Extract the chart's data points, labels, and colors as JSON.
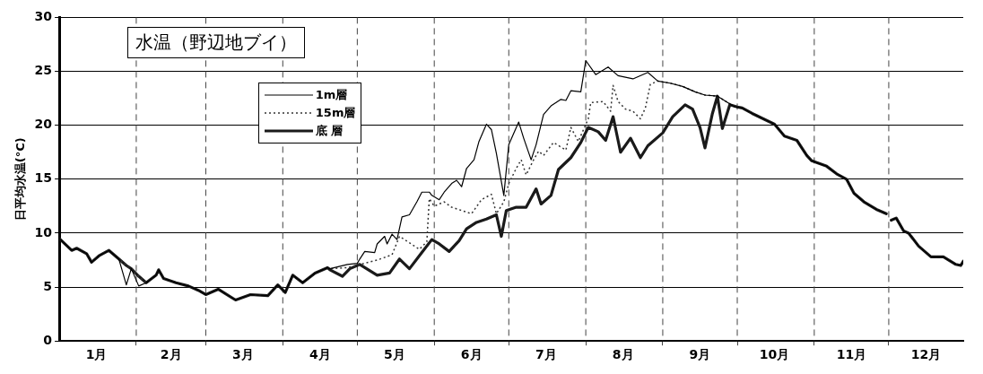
{
  "chart_data": {
    "type": "line",
    "title": "水温（野辺地ブイ）",
    "ylabel": "日平均水温(°C)",
    "xlim": [
      "--01-01",
      "--12-31"
    ],
    "xticks": [
      {
        "value": "--01-16",
        "label": "1月"
      },
      {
        "value": "--02-01",
        "label": null
      },
      {
        "value": "--02-15",
        "label": "2月"
      },
      {
        "value": "--03-01",
        "label": null
      },
      {
        "value": "--03-16",
        "label": "3月"
      },
      {
        "value": "--04-01",
        "label": null
      },
      {
        "value": "--04-16",
        "label": "4月"
      },
      {
        "value": "--05-01",
        "label": null
      },
      {
        "value": "--05-16",
        "label": "5月"
      },
      {
        "value": "--06-01",
        "label": null
      },
      {
        "value": "--06-16",
        "label": "6月"
      },
      {
        "value": "--07-01",
        "label": null
      },
      {
        "value": "--07-16",
        "label": "7月"
      },
      {
        "value": "--08-01",
        "label": null
      },
      {
        "value": "--08-16",
        "label": "8月"
      },
      {
        "value": "--09-01",
        "label": null
      },
      {
        "value": "--09-16",
        "label": "9月"
      },
      {
        "value": "--10-01",
        "label": null
      },
      {
        "value": "--10-16",
        "label": "10月"
      },
      {
        "value": "--11-01",
        "label": null
      },
      {
        "value": "--11-16",
        "label": "11月"
      },
      {
        "value": "--12-01",
        "label": null
      },
      {
        "value": "--12-16",
        "label": "12月"
      }
    ],
    "ylim": [
      0,
      30
    ],
    "yticks": [
      0,
      5,
      10,
      15,
      20,
      25,
      30
    ],
    "grid": true,
    "legend": "top left",
    "marker": "none",
    "series": [
      {
        "name": "1m層",
        "color": "#000000",
        "line_style": "solid",
        "x": [
          "--01-01",
          "--01-06",
          "--01-08",
          "--01-12",
          "--01-14",
          "--01-17",
          "--01-21",
          "--01-25",
          "--01-28",
          "--01-30",
          "--02-02",
          "--02-05",
          "--02-09",
          "--02-10",
          "--02-12",
          "--02-17",
          "--02-22",
          "--02-26",
          "--03-01",
          "--03-06",
          "--03-13",
          "--03-19",
          "--03-26",
          "--03-30",
          "--04-02",
          "--04-05",
          "--04-09",
          "--04-14",
          "--04-19",
          "--04-20",
          "--04-27",
          "--05-01",
          "--05-02",
          "--05-04",
          "--05-08",
          "--05-09",
          "--05-12",
          "--05-13",
          "--05-15",
          "--05-17",
          "--05-19",
          "--05-22",
          "--05-25",
          "--05-27",
          "--05-30",
          "--05-31",
          "--06-03",
          "--06-05",
          "--06-08",
          "--06-10",
          "--06-12",
          "--06-14",
          "--06-17",
          "--06-19",
          "--06-22",
          "--06-24",
          "--06-26",
          "--06-29",
          "--07-01",
          "--07-05",
          "--07-07",
          "--07-10",
          "--07-12",
          "--07-15",
          "--07-18",
          "--07-22",
          "--07-24",
          "--07-26",
          "--07-30",
          "--08-01",
          "--08-05",
          "--08-10",
          "--08-14",
          "--08-20",
          "--08-26",
          "--08-30",
          "--09-04",
          "--09-09",
          "--09-14",
          "--09-18",
          "--09-23",
          "--09-30",
          "--10-03",
          "--10-07",
          "--10-16",
          "--10-20",
          "--10-25",
          "--10-29",
          "--10-31",
          "--11-06",
          "--11-10",
          "--11-14",
          "--11-17",
          "--11-21",
          "--11-26",
          "--11-30",
          "--12-01",
          "--12-02",
          "--12-04",
          "--12-07",
          "--12-09",
          "--12-13",
          "--12-18",
          "--12-23",
          "--12-28",
          "--12-30",
          "--12-31"
        ],
        "values": [
          9.5,
          8.4,
          8.6,
          8.1,
          7.3,
          7.9,
          8.4,
          7.6,
          5.2,
          6.7,
          5.1,
          5.4,
          6.1,
          6.6,
          5.8,
          5.4,
          5.1,
          4.7,
          4.3,
          4.8,
          3.8,
          4.3,
          4.2,
          5.2,
          4.5,
          6.1,
          5.4,
          6.3,
          6.8,
          6.7,
          7.1,
          7.2,
          7.6,
          8.3,
          8.2,
          9.0,
          9.7,
          9.0,
          9.9,
          9.4,
          11.5,
          11.7,
          12.9,
          13.8,
          13.8,
          13.5,
          13.1,
          13.8,
          14.6,
          14.9,
          14.3,
          16,
          16.8,
          18.5,
          20.1,
          19.6,
          17.4,
          13.5,
          18.2,
          20.3,
          18.8,
          16.8,
          18.2,
          21,
          21.8,
          22.4,
          22.3,
          23.2,
          23.1,
          26.0,
          24.7,
          25.4,
          24.6,
          24.3,
          24.9,
          24.1,
          23.9,
          23.6,
          23.1,
          22.8,
          22.7,
          21.7,
          21.6,
          21.1,
          20.1,
          19.0,
          18.6,
          17.2,
          16.7,
          16.2,
          15.5,
          15.0,
          13.7,
          12.9,
          12.2,
          11.8,
          null,
          11.2,
          11.4,
          10.2,
          10.0,
          8.8,
          7.8,
          7.8,
          7.1,
          7.0,
          7.4
        ]
      },
      {
        "name": "15m層",
        "color": "#333333",
        "line_style": "dotted",
        "x": [
          "--01-01",
          "--01-06",
          "--01-08",
          "--01-12",
          "--01-14",
          "--01-17",
          "--01-21",
          "--01-25",
          "--01-28",
          "--01-30",
          "--02-02",
          "--02-05",
          "--02-09",
          "--02-10",
          "--02-12",
          "--02-17",
          "--02-22",
          "--02-26",
          "--03-01",
          "--03-06",
          "--03-13",
          "--03-19",
          "--03-26",
          "--03-30",
          "--04-02",
          "--04-05",
          "--04-09",
          "--04-14",
          "--04-19",
          "--04-20",
          "--04-27",
          "--05-02",
          "--05-09",
          "--05-15",
          "--05-18",
          "--05-26",
          "--05-29",
          "--05-30",
          "--06-01",
          "--06-05",
          "--06-08",
          "--06-12",
          "--06-16",
          "--06-20",
          "--06-24",
          "--06-26",
          "--06-29",
          "--07-01",
          "--07-04",
          "--07-06",
          "--07-08",
          "--07-11",
          "--07-13",
          "--07-15",
          "--07-19",
          "--07-24",
          "--07-26",
          "--07-29",
          "--08-02",
          "--08-03",
          "--08-08",
          "--08-11",
          "--08-12",
          "--08-14",
          "--08-17",
          "--08-20",
          "--08-23",
          "--08-25",
          "--08-27",
          "--08-30",
          "--09-04",
          "--09-09",
          "--09-14",
          "--09-18",
          "--09-23",
          "--09-30",
          "--10-03",
          "--10-07",
          "--10-16",
          "--10-20",
          "--10-25",
          "--10-29",
          "--10-31",
          "--11-06",
          "--11-10",
          "--11-14",
          "--11-17",
          "--11-21",
          "--11-26",
          "--11-30",
          "--12-01",
          "--12-02",
          "--12-04",
          "--12-07",
          "--12-09",
          "--12-13",
          "--12-18",
          "--12-23",
          "--12-28",
          "--12-30",
          "--12-31"
        ],
        "values": [
          9.5,
          8.4,
          8.6,
          8.1,
          7.3,
          7.9,
          8.4,
          7.6,
          7.0,
          6.7,
          6.0,
          5.4,
          6.1,
          6.6,
          5.8,
          5.4,
          5.1,
          4.7,
          4.3,
          4.8,
          3.8,
          4.3,
          4.2,
          5.2,
          4.5,
          6.1,
          5.4,
          6.3,
          6.8,
          6.7,
          6.8,
          7.1,
          7.5,
          8.0,
          9.7,
          8.5,
          9.2,
          13.2,
          12.5,
          12.9,
          12.4,
          12.1,
          11.8,
          13.1,
          13.6,
          11.8,
          12.9,
          14.6,
          16,
          16.8,
          15.4,
          16.8,
          17.6,
          17.2,
          18.4,
          17.7,
          19.8,
          18.5,
          20.6,
          22.1,
          22.2,
          21.3,
          23.7,
          22.2,
          21.5,
          21.3,
          20.6,
          21.6,
          23.8,
          24.1,
          23.9,
          23.6,
          23.1,
          22.8,
          22.7,
          21.7,
          21.6,
          21.1,
          20.1,
          19.0,
          18.6,
          17.2,
          16.7,
          16.2,
          15.5,
          15.0,
          13.7,
          12.9,
          12.2,
          11.8,
          null,
          11.2,
          11.4,
          10.2,
          10.0,
          8.8,
          7.8,
          7.8,
          7.1,
          7.0,
          7.4
        ]
      },
      {
        "name": "底 層",
        "color": "#1a1a1a",
        "line_style": "solid",
        "x": [
          "--01-01",
          "--01-06",
          "--01-08",
          "--01-12",
          "--01-14",
          "--01-17",
          "--01-21",
          "--01-25",
          "--01-28",
          "--01-30",
          "--02-02",
          "--02-05",
          "--02-09",
          "--02-10",
          "--02-12",
          "--02-17",
          "--02-22",
          "--02-26",
          "--03-01",
          "--03-06",
          "--03-13",
          "--03-19",
          "--03-26",
          "--03-30",
          "--04-02",
          "--04-05",
          "--04-09",
          "--04-14",
          "--04-19",
          "--04-20",
          "--04-25",
          "--04-28",
          "--05-02",
          "--05-09",
          "--05-14",
          "--05-18",
          "--05-22",
          "--05-27",
          "--05-31",
          "--06-03",
          "--06-07",
          "--06-11",
          "--06-14",
          "--06-18",
          "--06-22",
          "--06-26",
          "--06-28",
          "--06-30",
          "--07-04",
          "--07-08",
          "--07-12",
          "--07-14",
          "--07-18",
          "--07-21",
          "--07-26",
          "--07-30",
          "--08-02",
          "--08-06",
          "--08-09",
          "--08-12",
          "--08-15",
          "--08-19",
          "--08-23",
          "--08-26",
          "--09-01",
          "--09-05",
          "--09-10",
          "--09-13",
          "--09-16",
          "--09-18",
          "--09-21",
          "--09-23",
          "--09-25",
          "--09-28",
          "--10-01",
          "--10-03",
          "--10-07",
          "--10-16",
          "--10-20",
          "--10-25",
          "--10-29",
          "--10-31",
          "--11-06",
          "--11-10",
          "--11-14",
          "--11-17",
          "--11-21",
          "--11-26",
          "--11-30",
          "--12-01",
          "--12-02",
          "--12-04",
          "--12-07",
          "--12-09",
          "--12-13",
          "--12-18",
          "--12-23",
          "--12-28",
          "--12-30",
          "--12-31"
        ],
        "values": [
          9.5,
          8.4,
          8.6,
          8.1,
          7.3,
          7.9,
          8.4,
          7.6,
          7.0,
          6.7,
          6.0,
          5.4,
          6.1,
          6.6,
          5.8,
          5.4,
          5.1,
          4.7,
          4.3,
          4.8,
          3.8,
          4.3,
          4.2,
          5.2,
          4.5,
          6.1,
          5.4,
          6.3,
          6.8,
          6.6,
          6.0,
          6.7,
          7.1,
          6.1,
          6.3,
          7.6,
          6.7,
          8.2,
          9.4,
          9.0,
          8.3,
          9.3,
          10.4,
          11,
          11.3,
          11.7,
          9.7,
          12.1,
          12.4,
          12.4,
          14.1,
          12.7,
          13.5,
          15.9,
          17.0,
          18.4,
          19.8,
          19.4,
          18.6,
          20.8,
          17.5,
          18.8,
          17.0,
          18.1,
          19.3,
          20.8,
          21.9,
          21.5,
          19.8,
          17.9,
          21.1,
          22.7,
          19.7,
          21.9,
          21.7,
          21.6,
          21.1,
          20.1,
          19.0,
          18.6,
          17.2,
          16.7,
          16.2,
          15.5,
          15.0,
          13.7,
          12.9,
          12.2,
          11.8,
          null,
          11.2,
          11.4,
          10.2,
          10.0,
          8.8,
          7.8,
          7.8,
          7.1,
          7.0,
          7.4
        ]
      }
    ]
  }
}
